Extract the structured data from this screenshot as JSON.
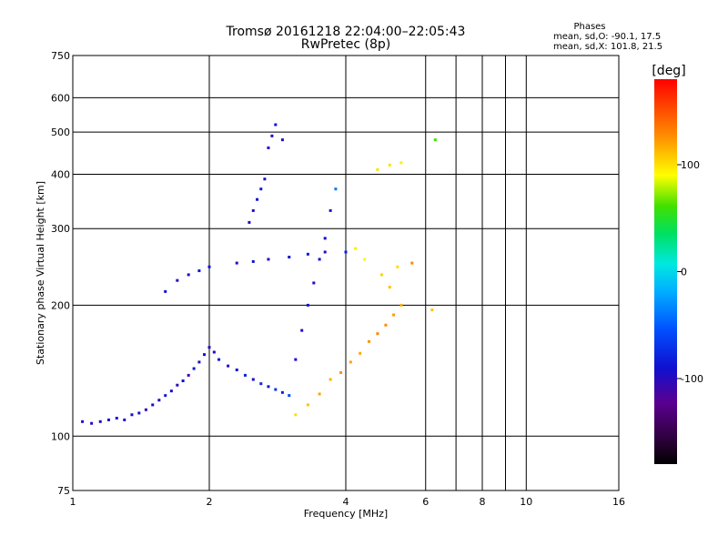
{
  "chart_data": {
    "type": "scatter",
    "title": "Tromsø 20161218 22:04:00–22:05:43",
    "subtitle": "RwPretec (8p)",
    "xlabel": "Frequency [MHz]",
    "ylabel": "Stationary phase Virtual Height [km]",
    "x_scale": "log",
    "y_scale": "log",
    "xlim": [
      1,
      16
    ],
    "ylim": [
      75,
      750
    ],
    "x_ticks": [
      1,
      2,
      4,
      6,
      8,
      10,
      16
    ],
    "x_tick_labels": [
      "1",
      "2",
      "4",
      "6",
      "8",
      "10",
      "16"
    ],
    "y_ticks": [
      75,
      100,
      200,
      300,
      400,
      500,
      600,
      750
    ],
    "y_tick_labels": [
      "75",
      "100",
      "200",
      "300",
      "400",
      "500",
      "600",
      "750"
    ],
    "grid": true,
    "info": {
      "title": "Phases",
      "line1": "mean, sd,O: -90.1, 17.5",
      "line2": "mean, sd,X: 101.8, 21.5"
    },
    "colorbar": {
      "label": "[deg]",
      "range": [
        -180,
        180
      ],
      "ticks": [
        100,
        0,
        -100
      ],
      "tick_labels": [
        "100",
        "0",
        "-100"
      ],
      "colormap": "rainbow (black-purple-blue-cyan-green-yellow-orange-red)"
    },
    "point_color_value": "phase [deg]",
    "series": [
      {
        "mode": "O",
        "points": [
          [
            1.05,
            108,
            -95
          ],
          [
            1.1,
            107,
            -100
          ],
          [
            1.15,
            108,
            -92
          ],
          [
            1.2,
            109,
            -98
          ],
          [
            1.25,
            110,
            -85
          ],
          [
            1.3,
            109,
            -100
          ],
          [
            1.35,
            112,
            -90
          ],
          [
            1.4,
            113,
            -95
          ],
          [
            1.45,
            115,
            -105
          ],
          [
            1.5,
            118,
            -90
          ],
          [
            1.55,
            121,
            -98
          ],
          [
            1.6,
            124,
            -85
          ],
          [
            1.65,
            127,
            -95
          ],
          [
            1.7,
            131,
            -100
          ],
          [
            1.75,
            134,
            -90
          ],
          [
            1.8,
            138,
            -110
          ],
          [
            1.85,
            143,
            -88
          ],
          [
            1.9,
            148,
            -100
          ],
          [
            1.95,
            154,
            -92
          ],
          [
            2.0,
            160,
            -105
          ],
          [
            2.05,
            156,
            -95
          ],
          [
            2.1,
            150,
            -85
          ],
          [
            2.2,
            145,
            -100
          ],
          [
            2.3,
            142,
            -90
          ],
          [
            2.4,
            138,
            -80
          ],
          [
            2.5,
            135,
            -95
          ],
          [
            2.6,
            132,
            -75
          ],
          [
            2.7,
            130,
            -85
          ],
          [
            2.8,
            128,
            -70
          ],
          [
            2.9,
            126,
            -80
          ],
          [
            3.0,
            124,
            -60
          ],
          [
            3.1,
            150,
            -95
          ],
          [
            3.2,
            175,
            -100
          ],
          [
            3.3,
            200,
            -90
          ],
          [
            3.4,
            225,
            -95
          ],
          [
            3.5,
            255,
            -88
          ],
          [
            3.6,
            285,
            -92
          ],
          [
            3.7,
            330,
            -85
          ],
          [
            3.8,
            370,
            -40
          ],
          [
            2.45,
            310,
            -95
          ],
          [
            2.5,
            330,
            -100
          ],
          [
            2.55,
            350,
            -90
          ],
          [
            2.6,
            370,
            -85
          ],
          [
            2.65,
            390,
            -95
          ],
          [
            2.7,
            460,
            -100
          ],
          [
            2.75,
            490,
            -98
          ],
          [
            2.8,
            520,
            -92
          ],
          [
            2.9,
            480,
            -95
          ],
          [
            1.6,
            215,
            -90
          ],
          [
            1.7,
            228,
            -100
          ],
          [
            1.8,
            235,
            -95
          ],
          [
            1.9,
            240,
            -85
          ],
          [
            2.0,
            245,
            -90
          ],
          [
            2.3,
            250,
            -95
          ],
          [
            2.5,
            252,
            -88
          ],
          [
            2.7,
            255,
            -100
          ],
          [
            3.0,
            258,
            -90
          ],
          [
            3.3,
            262,
            -85
          ],
          [
            3.6,
            265,
            -95
          ],
          [
            4.0,
            265,
            -80
          ]
        ]
      },
      {
        "mode": "X",
        "points": [
          [
            3.1,
            112,
            100
          ],
          [
            3.3,
            118,
            110
          ],
          [
            3.5,
            125,
            120
          ],
          [
            3.7,
            135,
            115
          ],
          [
            3.9,
            140,
            125
          ],
          [
            4.1,
            148,
            120
          ],
          [
            4.3,
            155,
            118
          ],
          [
            4.5,
            165,
            125
          ],
          [
            4.7,
            172,
            130
          ],
          [
            4.9,
            180,
            128
          ],
          [
            5.1,
            190,
            122
          ],
          [
            5.3,
            200,
            115
          ],
          [
            5.0,
            220,
            110
          ],
          [
            4.8,
            235,
            105
          ],
          [
            5.2,
            245,
            100
          ],
          [
            5.6,
            250,
            130
          ],
          [
            4.2,
            270,
            95
          ],
          [
            4.4,
            255,
            92
          ],
          [
            5.0,
            420,
            100
          ],
          [
            5.3,
            425,
            95
          ],
          [
            4.7,
            410,
            100
          ],
          [
            6.2,
            195,
            110
          ],
          [
            6.3,
            480,
            60
          ]
        ]
      }
    ]
  }
}
